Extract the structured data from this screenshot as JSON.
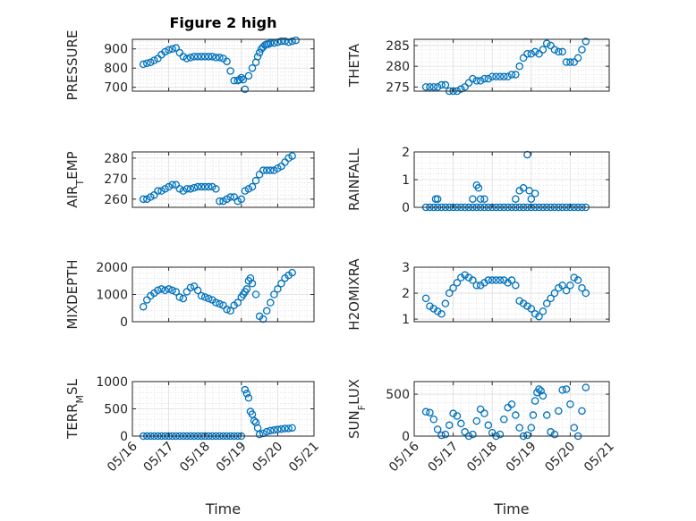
{
  "figure": {
    "title": "Figure 2 high"
  },
  "chart_data": [
    {
      "type": "scatter",
      "panel": "pressure",
      "title": "Figure 2 high",
      "ylabel": "PRESSURE",
      "ylabel_sub": "",
      "ylabel_tail": "",
      "ylim": [
        680,
        950
      ],
      "yticks": [
        700,
        800,
        900
      ],
      "ytick_labels": [
        "700",
        "800",
        "900"
      ],
      "xlim": [
        0,
        5
      ],
      "xticks": [
        0,
        1,
        2,
        3,
        4,
        5
      ],
      "xtick_labels": [
        "05/16",
        "05/17",
        "05/18",
        "05/19",
        "05/20",
        "05/21"
      ],
      "show_xticklabels": false,
      "xlabel": "",
      "grid": true,
      "minor_grid": true,
      "marker": "circle-open",
      "series": [
        {
          "x": [
            0.3,
            0.4,
            0.5,
            0.6,
            0.7,
            0.8,
            0.9,
            1.0,
            1.1,
            1.2,
            1.3,
            1.4,
            1.5,
            1.6,
            1.7,
            1.8,
            1.9,
            2.0,
            2.1,
            2.2,
            2.3,
            2.4,
            2.5,
            2.6,
            2.7,
            2.8,
            2.9,
            2.95,
            3.0,
            3.05,
            3.1,
            3.2,
            3.3,
            3.4,
            3.45,
            3.5,
            3.55,
            3.6,
            3.65,
            3.7,
            3.75,
            3.8,
            3.9,
            4.0,
            4.1,
            4.2,
            4.3,
            4.4,
            4.5
          ],
          "y": [
            820,
            825,
            830,
            840,
            850,
            870,
            885,
            895,
            900,
            905,
            880,
            860,
            850,
            855,
            860,
            860,
            860,
            860,
            860,
            860,
            855,
            855,
            850,
            835,
            785,
            735,
            735,
            740,
            750,
            740,
            690,
            760,
            800,
            830,
            860,
            880,
            900,
            910,
            920,
            925,
            925,
            930,
            930,
            935,
            940,
            940,
            935,
            940,
            945
          ]
        }
      ]
    },
    {
      "type": "scatter",
      "panel": "theta",
      "ylabel": "THETA",
      "ylabel_sub": "",
      "ylabel_tail": "",
      "ylim": [
        274,
        286.5
      ],
      "yticks": [
        275,
        280,
        285
      ],
      "ytick_labels": [
        "275",
        "280",
        "285"
      ],
      "xlim": [
        0,
        5
      ],
      "xticks": [
        0,
        1,
        2,
        3,
        4,
        5
      ],
      "xtick_labels": [
        "05/16",
        "05/17",
        "05/18",
        "05/19",
        "05/20",
        "05/21"
      ],
      "show_xticklabels": false,
      "xlabel": "",
      "grid": true,
      "minor_grid": true,
      "marker": "circle-open",
      "series": [
        {
          "x": [
            0.3,
            0.4,
            0.5,
            0.6,
            0.7,
            0.8,
            0.9,
            1.0,
            1.1,
            1.2,
            1.3,
            1.4,
            1.5,
            1.6,
            1.7,
            1.8,
            1.9,
            2.0,
            2.1,
            2.2,
            2.3,
            2.4,
            2.5,
            2.6,
            2.7,
            2.8,
            2.9,
            3.0,
            3.1,
            3.2,
            3.3,
            3.4,
            3.5,
            3.6,
            3.7,
            3.8,
            3.9,
            4.0,
            4.1,
            4.2,
            4.3,
            4.4
          ],
          "y": [
            275,
            275,
            275,
            275,
            275.5,
            275.5,
            274,
            274,
            274,
            274.5,
            275,
            276,
            277,
            276.5,
            276.5,
            277,
            277,
            277.5,
            277.5,
            277.5,
            277.5,
            277.5,
            278,
            278,
            280,
            282,
            283,
            283,
            283.5,
            283,
            284,
            285.5,
            285,
            284,
            283.5,
            283.5,
            281,
            281,
            281,
            282,
            284,
            286
          ]
        }
      ]
    },
    {
      "type": "scatter",
      "panel": "air_temp",
      "ylabel": "AIR",
      "ylabel_sub": "T",
      "ylabel_tail": "EMP",
      "ylim": [
        256,
        283
      ],
      "yticks": [
        260,
        270,
        280
      ],
      "ytick_labels": [
        "260",
        "270",
        "280"
      ],
      "xlim": [
        0,
        5
      ],
      "xticks": [
        0,
        1,
        2,
        3,
        4,
        5
      ],
      "xtick_labels": [
        "05/16",
        "05/17",
        "05/18",
        "05/19",
        "05/20",
        "05/21"
      ],
      "show_xticklabels": false,
      "xlabel": "",
      "grid": true,
      "minor_grid": true,
      "marker": "circle-open",
      "series": [
        {
          "x": [
            0.3,
            0.4,
            0.5,
            0.6,
            0.7,
            0.8,
            0.9,
            1.0,
            1.1,
            1.2,
            1.3,
            1.4,
            1.5,
            1.6,
            1.7,
            1.8,
            1.9,
            2.0,
            2.1,
            2.2,
            2.3,
            2.4,
            2.5,
            2.6,
            2.7,
            2.8,
            2.9,
            3.0,
            3.1,
            3.2,
            3.3,
            3.4,
            3.5,
            3.6,
            3.7,
            3.8,
            3.9,
            4.0,
            4.1,
            4.2,
            4.3,
            4.4
          ],
          "y": [
            260,
            260,
            261,
            262,
            264,
            264,
            265,
            266,
            267,
            267,
            265,
            264,
            265,
            265,
            265.5,
            266,
            266,
            266,
            266,
            266,
            265,
            259,
            259,
            260,
            261,
            261,
            259,
            260,
            264,
            265,
            266,
            269,
            272,
            274,
            274,
            274,
            274,
            275,
            276,
            278,
            280,
            281
          ]
        }
      ]
    },
    {
      "type": "scatter",
      "panel": "rainfall",
      "ylabel": "RAINFALL",
      "ylabel_sub": "",
      "ylabel_tail": "",
      "ylim": [
        0,
        2
      ],
      "yticks": [
        0,
        1,
        2
      ],
      "ytick_labels": [
        "0",
        "1",
        "2"
      ],
      "xlim": [
        0,
        5
      ],
      "xticks": [
        0,
        1,
        2,
        3,
        4,
        5
      ],
      "xtick_labels": [
        "05/16",
        "05/17",
        "05/18",
        "05/19",
        "05/20",
        "05/21"
      ],
      "show_xticklabels": false,
      "xlabel": "",
      "grid": true,
      "minor_grid": true,
      "marker": "circle-open",
      "series": [
        {
          "x": [
            0.3,
            0.4,
            0.5,
            0.6,
            0.7,
            0.8,
            0.9,
            1.0,
            1.1,
            1.2,
            1.3,
            1.4,
            1.5,
            1.6,
            1.7,
            1.8,
            1.9,
            2.0,
            2.1,
            2.2,
            2.3,
            2.4,
            2.5,
            2.6,
            2.7,
            2.8,
            2.9,
            3.0,
            3.1,
            3.2,
            3.3,
            3.4,
            3.5,
            3.6,
            3.7,
            3.8,
            3.9,
            4.0,
            4.1,
            4.2,
            4.3,
            4.4,
            0.55,
            0.6,
            1.5,
            1.6,
            1.65,
            1.7,
            1.8,
            2.6,
            2.7,
            2.8,
            2.9,
            2.95,
            3.0,
            3.1
          ],
          "y": [
            0,
            0,
            0,
            0,
            0,
            0,
            0,
            0,
            0,
            0,
            0,
            0,
            0,
            0,
            0,
            0,
            0,
            0,
            0,
            0,
            0,
            0,
            0,
            0,
            0,
            0,
            0,
            0,
            0,
            0,
            0,
            0,
            0,
            0,
            0,
            0,
            0,
            0,
            0,
            0,
            0,
            0,
            0.3,
            0.3,
            0.3,
            0.8,
            0.7,
            0.3,
            0.3,
            0.3,
            0.6,
            0.7,
            1.9,
            0.6,
            0.3,
            0.5
          ]
        }
      ]
    },
    {
      "type": "scatter",
      "panel": "mixdepth",
      "ylabel": "MIXDEPTH",
      "ylabel_sub": "",
      "ylabel_tail": "",
      "ylim": [
        0,
        2000
      ],
      "yticks": [
        0,
        1000,
        2000
      ],
      "ytick_labels": [
        "0",
        "1000",
        "2000"
      ],
      "xlim": [
        0,
        5
      ],
      "xticks": [
        0,
        1,
        2,
        3,
        4,
        5
      ],
      "xtick_labels": [
        "05/16",
        "05/17",
        "05/18",
        "05/19",
        "05/20",
        "05/21"
      ],
      "show_xticklabels": false,
      "xlabel": "",
      "grid": true,
      "minor_grid": true,
      "marker": "circle-open",
      "series": [
        {
          "x": [
            0.3,
            0.4,
            0.5,
            0.6,
            0.7,
            0.8,
            0.9,
            1.0,
            1.1,
            1.2,
            1.3,
            1.4,
            1.5,
            1.6,
            1.7,
            1.8,
            1.9,
            2.0,
            2.1,
            2.2,
            2.3,
            2.4,
            2.5,
            2.6,
            2.7,
            2.8,
            2.9,
            3.0,
            3.05,
            3.1,
            3.15,
            3.2,
            3.25,
            3.3,
            3.4,
            3.5,
            3.6,
            3.7,
            3.8,
            3.9,
            4.0,
            4.1,
            4.2,
            4.3,
            4.4
          ],
          "y": [
            550,
            800,
            950,
            1050,
            1150,
            1200,
            1150,
            1200,
            1150,
            1100,
            900,
            850,
            1100,
            1250,
            1300,
            1150,
            950,
            900,
            850,
            800,
            700,
            650,
            600,
            450,
            400,
            600,
            700,
            900,
            1000,
            1100,
            1200,
            1500,
            1600,
            1400,
            1000,
            200,
            100,
            400,
            700,
            1000,
            1200,
            1400,
            1600,
            1700,
            1800
          ]
        }
      ]
    },
    {
      "type": "scatter",
      "panel": "h2omixra",
      "ylabel": "H2OMIXRA",
      "ylabel_sub": "",
      "ylabel_tail": "",
      "ylim": [
        0.9,
        3
      ],
      "yticks": [
        1,
        2,
        3
      ],
      "ytick_labels": [
        "1",
        "2",
        "3"
      ],
      "xlim": [
        0,
        5
      ],
      "xticks": [
        0,
        1,
        2,
        3,
        4,
        5
      ],
      "xtick_labels": [
        "05/16",
        "05/17",
        "05/18",
        "05/19",
        "05/20",
        "05/21"
      ],
      "show_xticklabels": false,
      "xlabel": "",
      "grid": true,
      "minor_grid": true,
      "marker": "circle-open",
      "series": [
        {
          "x": [
            0.3,
            0.4,
            0.5,
            0.6,
            0.7,
            0.8,
            0.9,
            1.0,
            1.1,
            1.2,
            1.3,
            1.4,
            1.5,
            1.6,
            1.7,
            1.8,
            1.9,
            2.0,
            2.1,
            2.2,
            2.3,
            2.4,
            2.5,
            2.6,
            2.7,
            2.8,
            2.9,
            3.0,
            3.1,
            3.2,
            3.3,
            3.4,
            3.5,
            3.6,
            3.7,
            3.8,
            3.9,
            4.0,
            4.1,
            4.2,
            4.3,
            4.4
          ],
          "y": [
            1.8,
            1.5,
            1.4,
            1.3,
            1.2,
            1.6,
            2.0,
            2.2,
            2.4,
            2.6,
            2.7,
            2.6,
            2.5,
            2.3,
            2.3,
            2.4,
            2.5,
            2.5,
            2.5,
            2.5,
            2.5,
            2.4,
            2.5,
            2.3,
            1.7,
            1.6,
            1.5,
            1.4,
            1.2,
            1.1,
            1.3,
            1.6,
            1.8,
            2.0,
            2.2,
            2.3,
            2.1,
            2.3,
            2.6,
            2.5,
            2.2,
            2.0
          ]
        }
      ]
    },
    {
      "type": "scatter",
      "panel": "terr_msl",
      "ylabel": "TERR",
      "ylabel_sub": "M",
      "ylabel_tail": "SL",
      "ylim": [
        0,
        1000
      ],
      "yticks": [
        0,
        500,
        1000
      ],
      "ytick_labels": [
        "0",
        "500",
        "1000"
      ],
      "xlim": [
        0,
        5
      ],
      "xticks": [
        0,
        1,
        2,
        3,
        4,
        5
      ],
      "xtick_labels": [
        "05/16",
        "05/17",
        "05/18",
        "05/19",
        "05/20",
        "05/21"
      ],
      "show_xticklabels": true,
      "xlabel": "Time",
      "grid": true,
      "minor_grid": true,
      "marker": "circle-open",
      "series": [
        {
          "x": [
            0.3,
            0.4,
            0.5,
            0.6,
            0.7,
            0.8,
            0.9,
            1.0,
            1.1,
            1.2,
            1.3,
            1.4,
            1.5,
            1.6,
            1.7,
            1.8,
            1.9,
            2.0,
            2.1,
            2.2,
            2.3,
            2.4,
            2.5,
            2.6,
            2.7,
            2.8,
            2.9,
            3.0,
            3.1,
            3.15,
            3.2,
            3.25,
            3.3,
            3.35,
            3.4,
            3.45,
            3.5,
            3.6,
            3.7,
            3.8,
            3.9,
            4.0,
            4.1,
            4.2,
            4.3,
            4.4
          ],
          "y": [
            0,
            0,
            0,
            0,
            0,
            0,
            0,
            0,
            0,
            0,
            0,
            0,
            0,
            0,
            0,
            0,
            0,
            0,
            0,
            0,
            0,
            0,
            0,
            0,
            0,
            0,
            0,
            0,
            850,
            780,
            700,
            450,
            400,
            280,
            250,
            150,
            30,
            50,
            80,
            100,
            110,
            120,
            130,
            140,
            140,
            150
          ]
        }
      ]
    },
    {
      "type": "scatter",
      "panel": "sun_flux",
      "ylabel": "SUN",
      "ylabel_sub": "F",
      "ylabel_tail": "LUX",
      "ylim": [
        0,
        650
      ],
      "yticks": [
        0,
        500
      ],
      "ytick_labels": [
        "0",
        "500"
      ],
      "xlim": [
        0,
        5
      ],
      "xticks": [
        0,
        1,
        2,
        3,
        4,
        5
      ],
      "xtick_labels": [
        "05/16",
        "05/17",
        "05/18",
        "05/19",
        "05/20",
        "05/21"
      ],
      "show_xticklabels": true,
      "xlabel": "Time",
      "grid": true,
      "minor_grid": true,
      "marker": "circle-open",
      "series": [
        {
          "x": [
            0.3,
            0.4,
            0.5,
            0.6,
            0.7,
            0.8,
            0.9,
            1.0,
            1.1,
            1.2,
            1.3,
            1.4,
            1.5,
            1.6,
            1.7,
            1.8,
            1.9,
            2.0,
            2.1,
            2.2,
            2.3,
            2.4,
            2.5,
            2.6,
            2.7,
            2.8,
            2.9,
            3.0,
            3.05,
            3.1,
            3.15,
            3.2,
            3.25,
            3.3,
            3.4,
            3.5,
            3.6,
            3.7,
            3.8,
            3.9,
            4.0,
            4.1,
            4.2,
            4.3,
            4.4
          ],
          "y": [
            290,
            280,
            200,
            80,
            10,
            20,
            130,
            270,
            240,
            150,
            50,
            0,
            20,
            180,
            320,
            270,
            130,
            40,
            0,
            20,
            200,
            340,
            380,
            250,
            100,
            0,
            10,
            100,
            250,
            420,
            520,
            560,
            540,
            480,
            250,
            50,
            20,
            300,
            550,
            560,
            380,
            100,
            0,
            300,
            580
          ]
        }
      ]
    }
  ]
}
